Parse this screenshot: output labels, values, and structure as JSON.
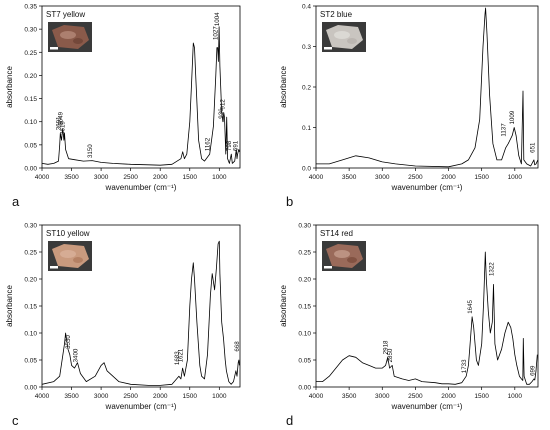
{
  "chart_data": [
    {
      "type": "line",
      "panel_letter": "a",
      "title": "ST7 yellow",
      "xlabel": "wavenumber (cm⁻¹)",
      "ylabel": "absorbance",
      "xlim": [
        4000,
        650
      ],
      "ylim": [
        0,
        0.35
      ],
      "xticks": [
        4000,
        3500,
        3000,
        2500,
        2000,
        1500,
        1000
      ],
      "yticks": [
        0.0,
        0.05,
        0.1,
        0.15,
        0.2,
        0.25,
        0.3,
        0.35
      ],
      "ytick_labels": [
        "0.00",
        "0.05",
        "0.10",
        "0.15",
        "0.20",
        "0.25",
        "0.30",
        "0.35"
      ],
      "photo": {
        "colors": [
          "#8a5a4a",
          "#b48878",
          "#6e4436"
        ]
      },
      "annotations": [
        {
          "text": "3691",
          "x": 3691,
          "y": 0.075
        },
        {
          "text": "3649",
          "x": 3649,
          "y": 0.085
        },
        {
          "text": "3619",
          "x": 3619,
          "y": 0.065
        },
        {
          "text": "3150",
          "x": 3150,
          "y": 0.015
        },
        {
          "text": "1162",
          "x": 1162,
          "y": 0.03
        },
        {
          "text": "1027",
          "x": 1027,
          "y": 0.27
        },
        {
          "text": "1004",
          "x": 1004,
          "y": 0.3
        },
        {
          "text": "936",
          "x": 936,
          "y": 0.1
        },
        {
          "text": "912",
          "x": 912,
          "y": 0.12
        },
        {
          "text": "798",
          "x": 798,
          "y": 0.03
        },
        {
          "text": "691",
          "x": 691,
          "y": 0.03
        }
      ],
      "series": [
        {
          "values": [
            [
              4000,
              0.01
            ],
            [
              3900,
              0.008
            ],
            [
              3800,
              0.01
            ],
            [
              3720,
              0.015
            ],
            [
              3700,
              0.05
            ],
            [
              3691,
              0.075
            ],
            [
              3670,
              0.06
            ],
            [
              3649,
              0.085
            ],
            [
              3630,
              0.06
            ],
            [
              3619,
              0.075
            ],
            [
              3600,
              0.04
            ],
            [
              3550,
              0.02
            ],
            [
              3450,
              0.018
            ],
            [
              3300,
              0.015
            ],
            [
              3150,
              0.016
            ],
            [
              3000,
              0.012
            ],
            [
              2800,
              0.01
            ],
            [
              2500,
              0.008
            ],
            [
              2200,
              0.007
            ],
            [
              2000,
              0.006
            ],
            [
              1800,
              0.008
            ],
            [
              1650,
              0.02
            ],
            [
              1620,
              0.035
            ],
            [
              1590,
              0.02
            ],
            [
              1550,
              0.03
            ],
            [
              1500,
              0.1
            ],
            [
              1470,
              0.18
            ],
            [
              1440,
              0.27
            ],
            [
              1420,
              0.26
            ],
            [
              1400,
              0.2
            ],
            [
              1350,
              0.06
            ],
            [
              1300,
              0.02
            ],
            [
              1250,
              0.015
            ],
            [
              1162,
              0.03
            ],
            [
              1100,
              0.09
            ],
            [
              1060,
              0.2
            ],
            [
              1040,
              0.26
            ],
            [
              1027,
              0.26
            ],
            [
              1015,
              0.23
            ],
            [
              1004,
              0.305
            ],
            [
              990,
              0.22
            ],
            [
              960,
              0.12
            ],
            [
              940,
              0.1
            ],
            [
              936,
              0.1
            ],
            [
              925,
              0.12
            ],
            [
              912,
              0.11
            ],
            [
              890,
              0.03
            ],
            [
              875,
              0.11
            ],
            [
              860,
              0.02
            ],
            [
              830,
              0.01
            ],
            [
              798,
              0.03
            ],
            [
              780,
              0.01
            ],
            [
              740,
              0.015
            ],
            [
              712,
              0.04
            ],
            [
              700,
              0.02
            ],
            [
              691,
              0.03
            ],
            [
              670,
              0.04
            ],
            [
              660,
              0.035
            ]
          ]
        }
      ]
    },
    {
      "type": "line",
      "panel_letter": "b",
      "title": "ST2 blue",
      "xlabel": "wavenumber (cm⁻¹)",
      "ylabel": "absorbance",
      "xlim": [
        4000,
        650
      ],
      "ylim": [
        0,
        0.4
      ],
      "xticks": [
        4000,
        3500,
        3000,
        2500,
        2000,
        1500,
        1000
      ],
      "yticks": [
        0.0,
        0.1,
        0.2,
        0.3,
        0.4
      ],
      "ytick_labels": [
        "0.0",
        "0.1",
        "0.2",
        "0.3",
        "0.4"
      ],
      "photo": {
        "colors": [
          "#c9c5c0",
          "#e0ddd8",
          "#b8b2ac"
        ]
      },
      "annotations": [
        {
          "text": "1137",
          "x": 1137,
          "y": 0.07
        },
        {
          "text": "1009",
          "x": 1009,
          "y": 0.1
        },
        {
          "text": "651",
          "x": 700,
          "y": 0.03
        }
      ],
      "series": [
        {
          "values": [
            [
              4000,
              0.01
            ],
            [
              3800,
              0.01
            ],
            [
              3600,
              0.02
            ],
            [
              3400,
              0.03
            ],
            [
              3200,
              0.025
            ],
            [
              3000,
              0.015
            ],
            [
              2800,
              0.01
            ],
            [
              2500,
              0.005
            ],
            [
              2000,
              0.003
            ],
            [
              1800,
              0.01
            ],
            [
              1700,
              0.02
            ],
            [
              1600,
              0.05
            ],
            [
              1530,
              0.12
            ],
            [
              1480,
              0.3
            ],
            [
              1450,
              0.38
            ],
            [
              1440,
              0.395
            ],
            [
              1420,
              0.33
            ],
            [
              1380,
              0.18
            ],
            [
              1330,
              0.06
            ],
            [
              1270,
              0.02
            ],
            [
              1200,
              0.02
            ],
            [
              1137,
              0.05
            ],
            [
              1100,
              0.06
            ],
            [
              1040,
              0.08
            ],
            [
              1009,
              0.1
            ],
            [
              980,
              0.08
            ],
            [
              940,
              0.03
            ],
            [
              900,
              0.01
            ],
            [
              876,
              0.19
            ],
            [
              865,
              0.02
            ],
            [
              820,
              0.01
            ],
            [
              760,
              0.005
            ],
            [
              712,
              0.02
            ],
            [
              700,
              0.008
            ],
            [
              680,
              0.01
            ],
            [
              651,
              0.02
            ]
          ]
        }
      ]
    },
    {
      "type": "line",
      "panel_letter": "c",
      "title": "ST10 yellow",
      "xlabel": "wavenumber (cm⁻¹)",
      "ylabel": "absorbance",
      "xlim": [
        4000,
        650
      ],
      "ylim": [
        0,
        0.3
      ],
      "xticks": [
        4000,
        3500,
        3000,
        2500,
        2000,
        1500,
        1000
      ],
      "yticks": [
        0.0,
        0.05,
        0.1,
        0.15,
        0.2,
        0.25,
        0.3
      ],
      "ytick_labels": [
        "0.00",
        "0.05",
        "0.10",
        "0.15",
        "0.20",
        "0.25",
        "0.30"
      ],
      "photo": {
        "colors": [
          "#c99a7e",
          "#d9b09a",
          "#b07a5e"
        ]
      },
      "annotations": [
        {
          "text": "3530",
          "x": 3530,
          "y": 0.065
        },
        {
          "text": "3400",
          "x": 3400,
          "y": 0.04
        },
        {
          "text": "1683",
          "x": 1683,
          "y": 0.035
        },
        {
          "text": "1621",
          "x": 1621,
          "y": 0.04
        },
        {
          "text": "668",
          "x": 668,
          "y": 0.06
        }
      ],
      "series": [
        {
          "values": [
            [
              4000,
              0.005
            ],
            [
              3800,
              0.01
            ],
            [
              3700,
              0.02
            ],
            [
              3620,
              0.08
            ],
            [
              3600,
              0.1
            ],
            [
              3560,
              0.07
            ],
            [
              3530,
              0.06
            ],
            [
              3500,
              0.04
            ],
            [
              3450,
              0.035
            ],
            [
              3400,
              0.045
            ],
            [
              3350,
              0.025
            ],
            [
              3250,
              0.01
            ],
            [
              3100,
              0.02
            ],
            [
              3000,
              0.04
            ],
            [
              2950,
              0.045
            ],
            [
              2900,
              0.03
            ],
            [
              2800,
              0.02
            ],
            [
              2700,
              0.01
            ],
            [
              2500,
              0.005
            ],
            [
              2200,
              0.003
            ],
            [
              2000,
              0.003
            ],
            [
              1800,
              0.005
            ],
            [
              1683,
              0.02
            ],
            [
              1650,
              0.015
            ],
            [
              1621,
              0.035
            ],
            [
              1590,
              0.02
            ],
            [
              1540,
              0.05
            ],
            [
              1500,
              0.15
            ],
            [
              1470,
              0.2
            ],
            [
              1440,
              0.23
            ],
            [
              1420,
              0.2
            ],
            [
              1380,
              0.12
            ],
            [
              1330,
              0.04
            ],
            [
              1300,
              0.02
            ],
            [
              1250,
              0.015
            ],
            [
              1200,
              0.06
            ],
            [
              1150,
              0.17
            ],
            [
              1120,
              0.21
            ],
            [
              1080,
              0.18
            ],
            [
              1050,
              0.22
            ],
            [
              1020,
              0.265
            ],
            [
              1000,
              0.27
            ],
            [
              990,
              0.21
            ],
            [
              960,
              0.12
            ],
            [
              930,
              0.09
            ],
            [
              900,
              0.05
            ],
            [
              880,
              0.03
            ],
            [
              840,
              0.01
            ],
            [
              800,
              0.005
            ],
            [
              760,
              0.01
            ],
            [
              720,
              0.03
            ],
            [
              700,
              0.02
            ],
            [
              680,
              0.045
            ],
            [
              668,
              0.05
            ],
            [
              660,
              0.04
            ]
          ]
        }
      ]
    },
    {
      "type": "line",
      "panel_letter": "d",
      "title": "ST14 red",
      "xlabel": "wavenumber (cm⁻¹)",
      "ylabel": "absorbance",
      "xlim": [
        4000,
        650
      ],
      "ylim": [
        0,
        0.3
      ],
      "xticks": [
        4000,
        3500,
        3000,
        2500,
        2000,
        1500,
        1000
      ],
      "yticks": [
        0.0,
        0.05,
        0.1,
        0.15,
        0.2,
        0.25,
        0.3
      ],
      "ytick_labels": [
        "0.00",
        "0.05",
        "0.10",
        "0.15",
        "0.20",
        "0.25",
        "0.30"
      ],
      "photo": {
        "colors": [
          "#9a6a5a",
          "#c49c8c",
          "#7c4c3c"
        ]
      },
      "annotations": [
        {
          "text": "2918",
          "x": 2918,
          "y": 0.055
        },
        {
          "text": "2850",
          "x": 2850,
          "y": 0.04
        },
        {
          "text": "1733",
          "x": 1733,
          "y": 0.02
        },
        {
          "text": "1645",
          "x": 1645,
          "y": 0.13
        },
        {
          "text": "1322",
          "x": 1322,
          "y": 0.2
        },
        {
          "text": "699",
          "x": 699,
          "y": 0.015
        }
      ],
      "series": [
        {
          "values": [
            [
              4000,
              0.01
            ],
            [
              3900,
              0.01
            ],
            [
              3800,
              0.02
            ],
            [
              3700,
              0.035
            ],
            [
              3600,
              0.05
            ],
            [
              3500,
              0.058
            ],
            [
              3400,
              0.055
            ],
            [
              3300,
              0.045
            ],
            [
              3200,
              0.04
            ],
            [
              3100,
              0.035
            ],
            [
              3000,
              0.035
            ],
            [
              2950,
              0.04
            ],
            [
              2918,
              0.055
            ],
            [
              2890,
              0.035
            ],
            [
              2850,
              0.04
            ],
            [
              2820,
              0.02
            ],
            [
              2700,
              0.015
            ],
            [
              2600,
              0.012
            ],
            [
              2500,
              0.015
            ],
            [
              2400,
              0.01
            ],
            [
              2200,
              0.008
            ],
            [
              2100,
              0.006
            ],
            [
              2000,
              0.006
            ],
            [
              1900,
              0.005
            ],
            [
              1800,
              0.008
            ],
            [
              1733,
              0.02
            ],
            [
              1700,
              0.04
            ],
            [
              1680,
              0.07
            ],
            [
              1645,
              0.13
            ],
            [
              1620,
              0.11
            ],
            [
              1580,
              0.05
            ],
            [
              1550,
              0.04
            ],
            [
              1500,
              0.08
            ],
            [
              1470,
              0.16
            ],
            [
              1445,
              0.25
            ],
            [
              1430,
              0.2
            ],
            [
              1400,
              0.14
            ],
            [
              1370,
              0.1
            ],
            [
              1340,
              0.12
            ],
            [
              1322,
              0.19
            ],
            [
              1300,
              0.08
            ],
            [
              1260,
              0.05
            ],
            [
              1200,
              0.07
            ],
            [
              1150,
              0.1
            ],
            [
              1100,
              0.12
            ],
            [
              1060,
              0.11
            ],
            [
              1030,
              0.09
            ],
            [
              1000,
              0.06
            ],
            [
              970,
              0.04
            ],
            [
              930,
              0.02
            ],
            [
              900,
              0.015
            ],
            [
              880,
              0.012
            ],
            [
              872,
              0.09
            ],
            [
              860,
              0.02
            ],
            [
              820,
              0.005
            ],
            [
              780,
              0.005
            ],
            [
              740,
              0.01
            ],
            [
              710,
              0.015
            ],
            [
              699,
              0.013
            ],
            [
              680,
              0.03
            ],
            [
              660,
              0.06
            ]
          ]
        }
      ]
    }
  ]
}
